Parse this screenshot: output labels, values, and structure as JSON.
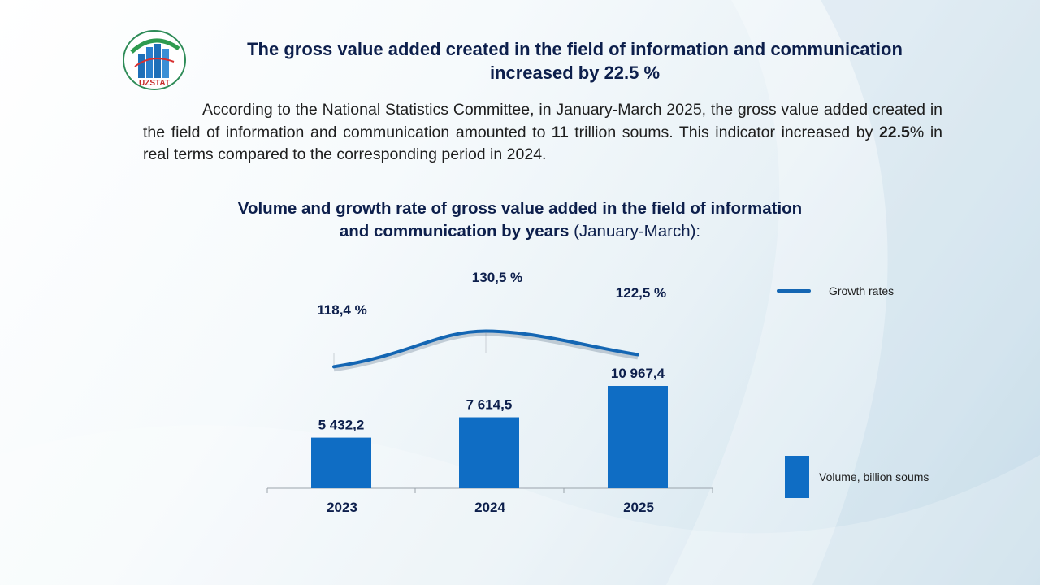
{
  "logo": {
    "text": "UZSTAT",
    "icon": "uzstat-logo-icon"
  },
  "headline": {
    "line1": "The gross value added created in the field of information and communication",
    "line2": "increased by 22.5 %"
  },
  "paragraph": {
    "part1": "According to the National Statistics Committee, in January-March 2025, the gross value added created in the field of information and communication amounted to ",
    "bold1": "11",
    "part2": " trillion soums. This indicator increased by ",
    "bold2": "22.5",
    "part3": "% in real terms compared to the corresponding period in 2024."
  },
  "chart_title": {
    "bold_line1": "Volume and growth rate of gross value added in the field of information",
    "bold_line2": "and communication by years",
    "normal_suffix": " (January-March):"
  },
  "colors": {
    "bar": "#0f6dc4",
    "line": "#1466b3",
    "text": "#0d1f4c"
  },
  "chart_data": {
    "type": "bar",
    "categories": [
      "2023",
      "2024",
      "2025"
    ],
    "series": [
      {
        "name": "Volume, billion soums",
        "type": "bar",
        "values": [
          5432.2,
          7614.5,
          10967.4
        ],
        "labels": [
          "5 432,2",
          "7 614,5",
          "10 967,4"
        ]
      },
      {
        "name": "Growth rates",
        "type": "line",
        "values": [
          118.4,
          130.5,
          122.5
        ],
        "labels": [
          "118,4 %",
          "130,5 %",
          "122,5 %"
        ]
      }
    ],
    "title": "Volume and growth rate of gross value added in the field of information and communication by years (January-March):",
    "xlabel": "",
    "ylabel": "",
    "ylim_bars": [
      0,
      12500
    ],
    "ylim_line": [
      100,
      140
    ],
    "legend": [
      "Growth rates",
      "Volume, billion soums"
    ],
    "legend_position": "right"
  }
}
